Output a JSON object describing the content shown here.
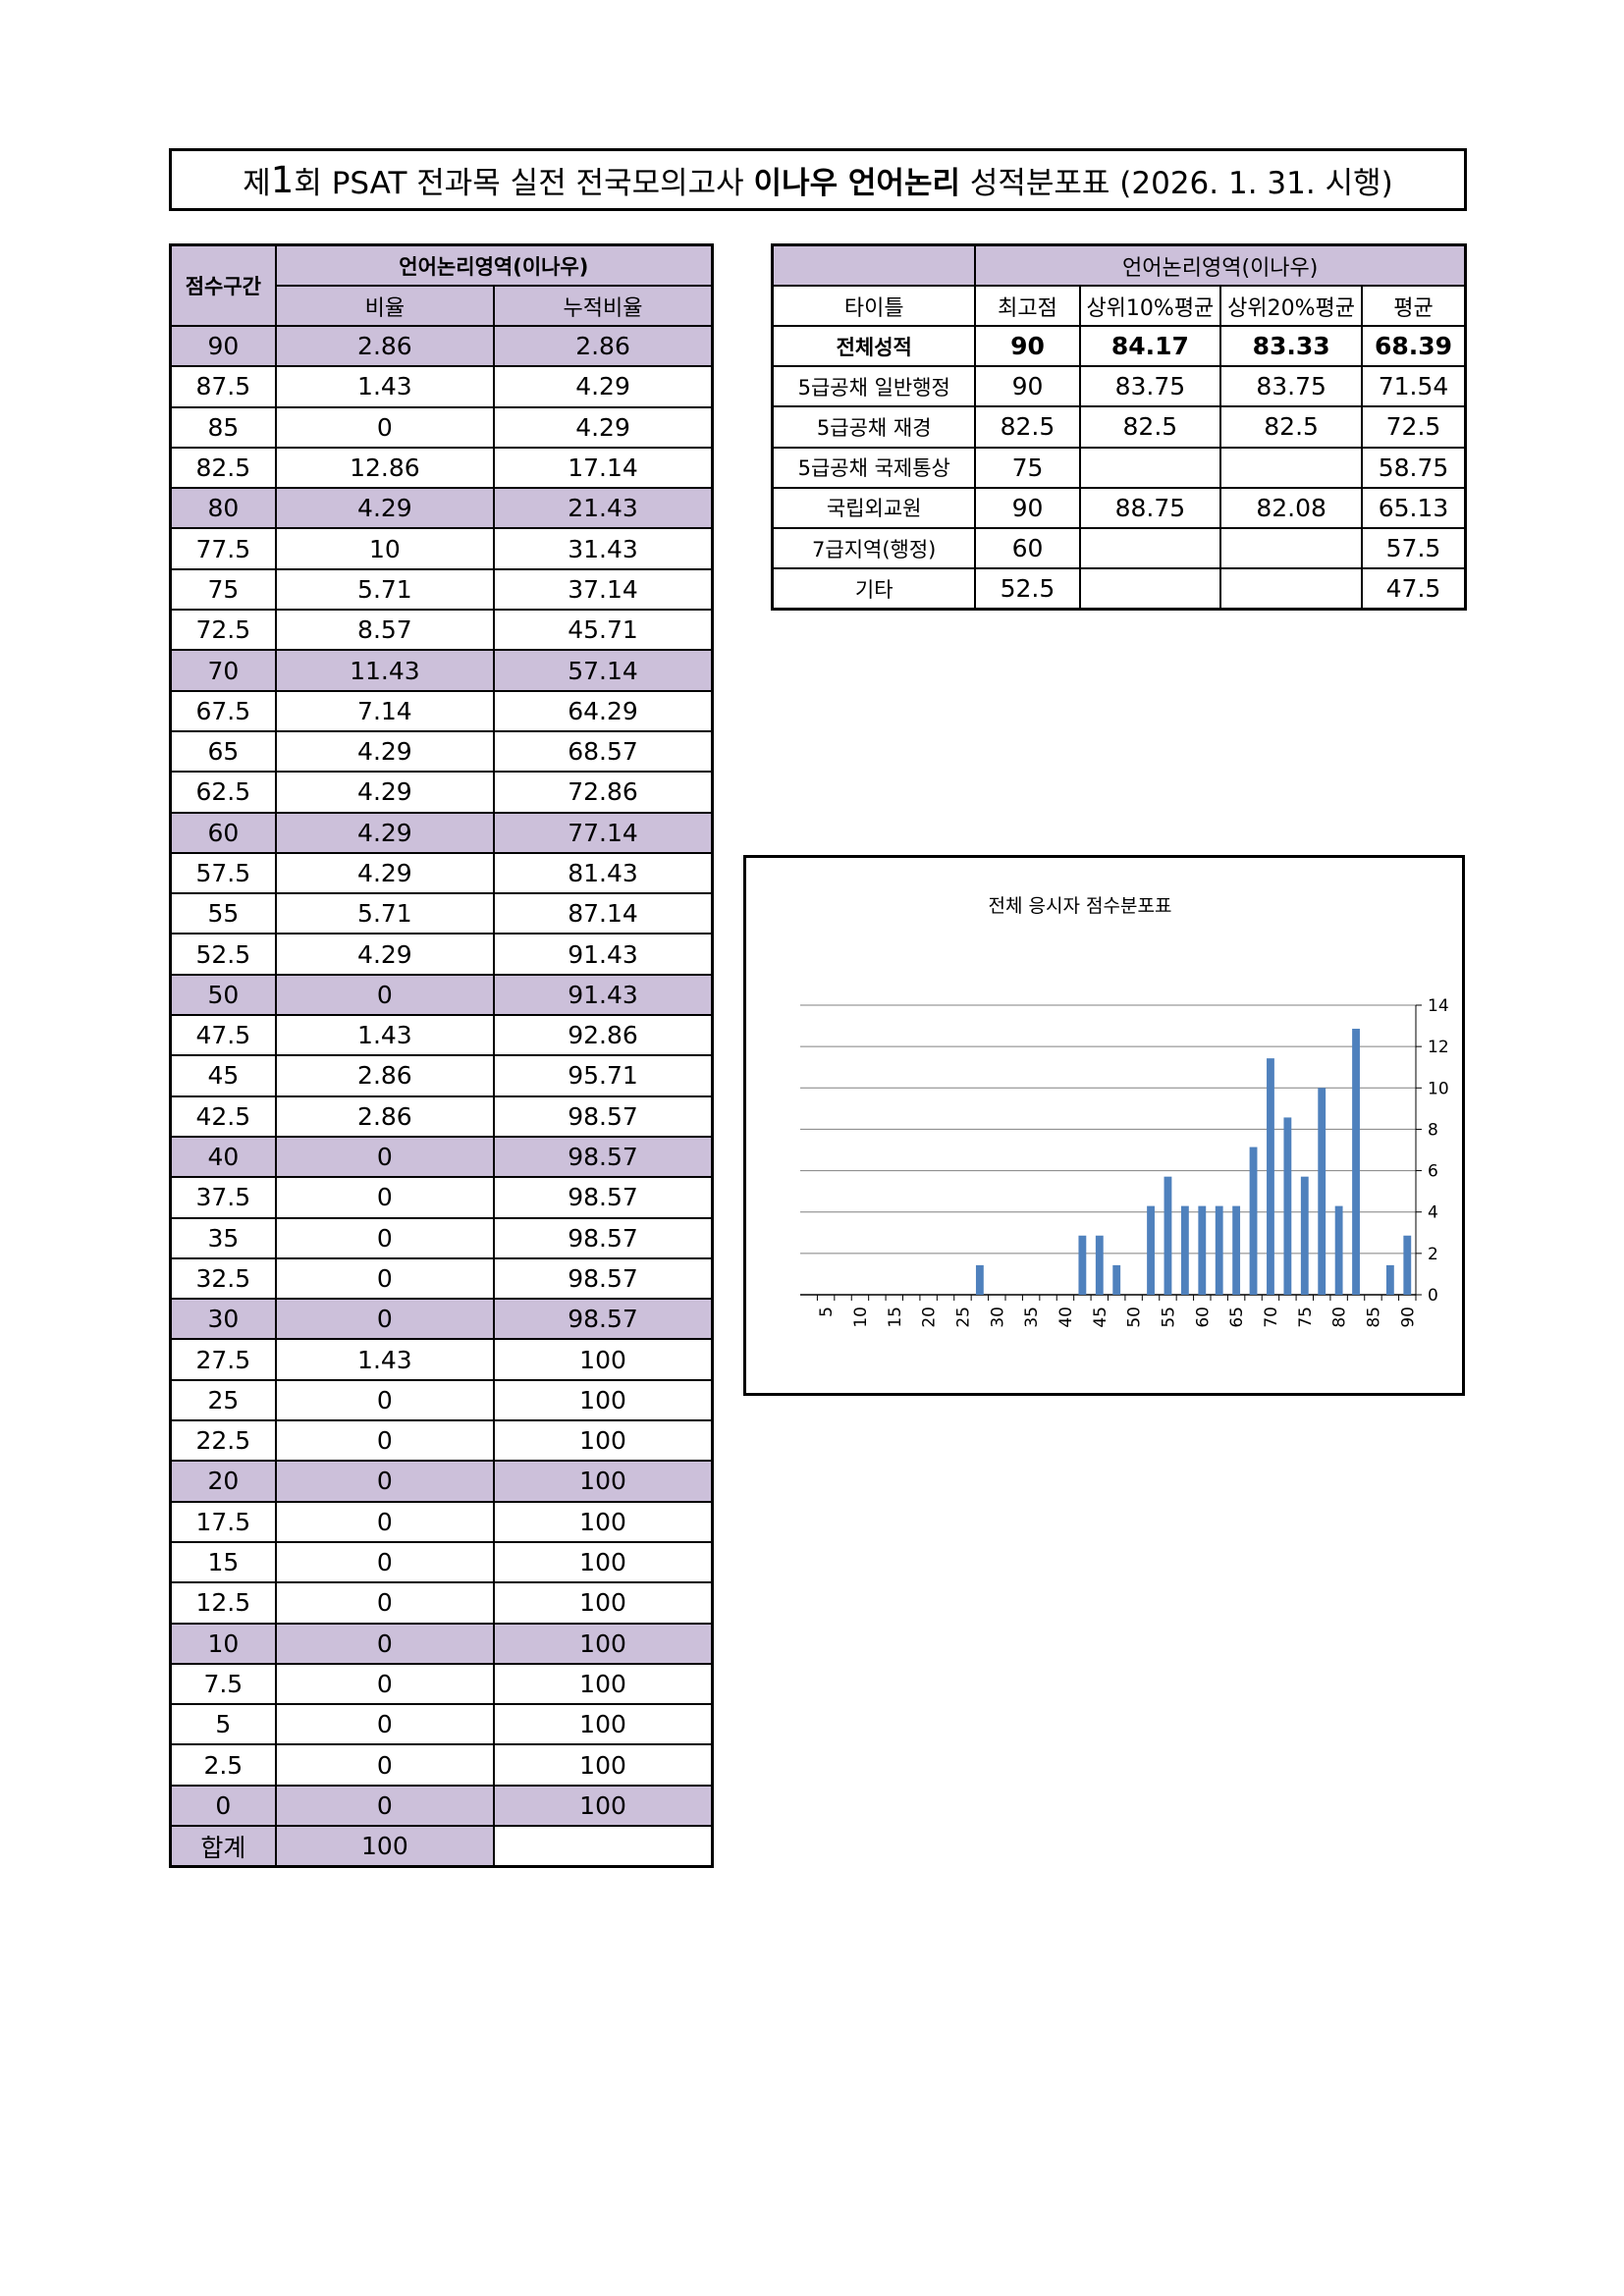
{
  "title": {
    "prefix": "제",
    "number": "1",
    "mid": "회 PSAT 전과목 실전 전국모의고사 ",
    "bold": "이나우 언어논리",
    "suffix": " 성적분포표 (2026. 1. 31. 시행)"
  },
  "distribution_table": {
    "corner_header": "점수구간",
    "group_header": "언어논리영역(이나우)",
    "col_ratio": "비율",
    "col_cumulative": "누적비율",
    "rows": [
      {
        "score": "90",
        "ratio": "2.86",
        "cum": "2.86"
      },
      {
        "score": "87.5",
        "ratio": "1.43",
        "cum": "4.29"
      },
      {
        "score": "85",
        "ratio": "0",
        "cum": "4.29"
      },
      {
        "score": "82.5",
        "ratio": "12.86",
        "cum": "17.14"
      },
      {
        "score": "80",
        "ratio": "4.29",
        "cum": "21.43"
      },
      {
        "score": "77.5",
        "ratio": "10",
        "cum": "31.43"
      },
      {
        "score": "75",
        "ratio": "5.71",
        "cum": "37.14"
      },
      {
        "score": "72.5",
        "ratio": "8.57",
        "cum": "45.71"
      },
      {
        "score": "70",
        "ratio": "11.43",
        "cum": "57.14"
      },
      {
        "score": "67.5",
        "ratio": "7.14",
        "cum": "64.29"
      },
      {
        "score": "65",
        "ratio": "4.29",
        "cum": "68.57"
      },
      {
        "score": "62.5",
        "ratio": "4.29",
        "cum": "72.86"
      },
      {
        "score": "60",
        "ratio": "4.29",
        "cum": "77.14"
      },
      {
        "score": "57.5",
        "ratio": "4.29",
        "cum": "81.43"
      },
      {
        "score": "55",
        "ratio": "5.71",
        "cum": "87.14"
      },
      {
        "score": "52.5",
        "ratio": "4.29",
        "cum": "91.43"
      },
      {
        "score": "50",
        "ratio": "0",
        "cum": "91.43"
      },
      {
        "score": "47.5",
        "ratio": "1.43",
        "cum": "92.86"
      },
      {
        "score": "45",
        "ratio": "2.86",
        "cum": "95.71"
      },
      {
        "score": "42.5",
        "ratio": "2.86",
        "cum": "98.57"
      },
      {
        "score": "40",
        "ratio": "0",
        "cum": "98.57"
      },
      {
        "score": "37.5",
        "ratio": "0",
        "cum": "98.57"
      },
      {
        "score": "35",
        "ratio": "0",
        "cum": "98.57"
      },
      {
        "score": "32.5",
        "ratio": "0",
        "cum": "98.57"
      },
      {
        "score": "30",
        "ratio": "0",
        "cum": "98.57"
      },
      {
        "score": "27.5",
        "ratio": "1.43",
        "cum": "100"
      },
      {
        "score": "25",
        "ratio": "0",
        "cum": "100"
      },
      {
        "score": "22.5",
        "ratio": "0",
        "cum": "100"
      },
      {
        "score": "20",
        "ratio": "0",
        "cum": "100"
      },
      {
        "score": "17.5",
        "ratio": "0",
        "cum": "100"
      },
      {
        "score": "15",
        "ratio": "0",
        "cum": "100"
      },
      {
        "score": "12.5",
        "ratio": "0",
        "cum": "100"
      },
      {
        "score": "10",
        "ratio": "0",
        "cum": "100"
      },
      {
        "score": "7.5",
        "ratio": "0",
        "cum": "100"
      },
      {
        "score": "5",
        "ratio": "0",
        "cum": "100"
      },
      {
        "score": "2.5",
        "ratio": "0",
        "cum": "100"
      },
      {
        "score": "0",
        "ratio": "0",
        "cum": "100"
      }
    ],
    "total_label": "합계",
    "total_value": "100"
  },
  "summary_table": {
    "group_header": "언어논리영역(이나우)",
    "columns": [
      "타이틀",
      "최고점",
      "상위10%평균",
      "상위20%평균",
      "평균"
    ],
    "rows": [
      {
        "title": "전체성적",
        "max": "90",
        "top10": "84.17",
        "top20": "83.33",
        "avg": "68.39"
      },
      {
        "title": "5급공채 일반행정",
        "max": "90",
        "top10": "83.75",
        "top20": "83.75",
        "avg": "71.54"
      },
      {
        "title": "5급공채 재경",
        "max": "82.5",
        "top10": "82.5",
        "top20": "82.5",
        "avg": "72.5"
      },
      {
        "title": "5급공채 국제통상",
        "max": "75",
        "top10": "",
        "top20": "",
        "avg": "58.75"
      },
      {
        "title": "국립외교원",
        "max": "90",
        "top10": "88.75",
        "top20": "82.08",
        "avg": "65.13"
      },
      {
        "title": "7급지역(행정)",
        "max": "60",
        "top10": "",
        "top20": "",
        "avg": "57.5"
      },
      {
        "title": "기타",
        "max": "52.5",
        "top10": "",
        "top20": "",
        "avg": "47.5"
      }
    ]
  },
  "chart_data": {
    "type": "bar",
    "title": "전체 응시자 점수분포표",
    "categories": [
      "2.5",
      "5",
      "7.5",
      "10",
      "12.5",
      "15",
      "17.5",
      "20",
      "22.5",
      "25",
      "27.5",
      "30",
      "32.5",
      "35",
      "37.5",
      "40",
      "42.5",
      "45",
      "47.5",
      "50",
      "52.5",
      "55",
      "57.5",
      "60",
      "62.5",
      "65",
      "67.5",
      "70",
      "72.5",
      "75",
      "77.5",
      "80",
      "82.5",
      "85",
      "87.5",
      "90"
    ],
    "x_tick_labels": [
      "5",
      "10",
      "15",
      "20",
      "25",
      "30",
      "35",
      "40",
      "45",
      "50",
      "55",
      "60",
      "65",
      "70",
      "75",
      "80",
      "85",
      "90"
    ],
    "values": [
      0,
      0,
      0,
      0,
      0,
      0,
      0,
      0,
      0,
      0,
      1.43,
      0,
      0,
      0,
      0,
      0,
      2.86,
      2.86,
      1.43,
      0,
      4.29,
      5.71,
      4.29,
      4.29,
      4.29,
      4.29,
      7.14,
      11.43,
      8.57,
      5.71,
      10,
      4.29,
      12.86,
      0,
      1.43,
      2.86
    ],
    "y_ticks": [
      "0",
      "2",
      "4",
      "6",
      "8",
      "10",
      "12",
      "14"
    ],
    "ylim": [
      0,
      14
    ],
    "y_axis_position": "right",
    "grid": true,
    "bar_color": "#4f81bd"
  }
}
